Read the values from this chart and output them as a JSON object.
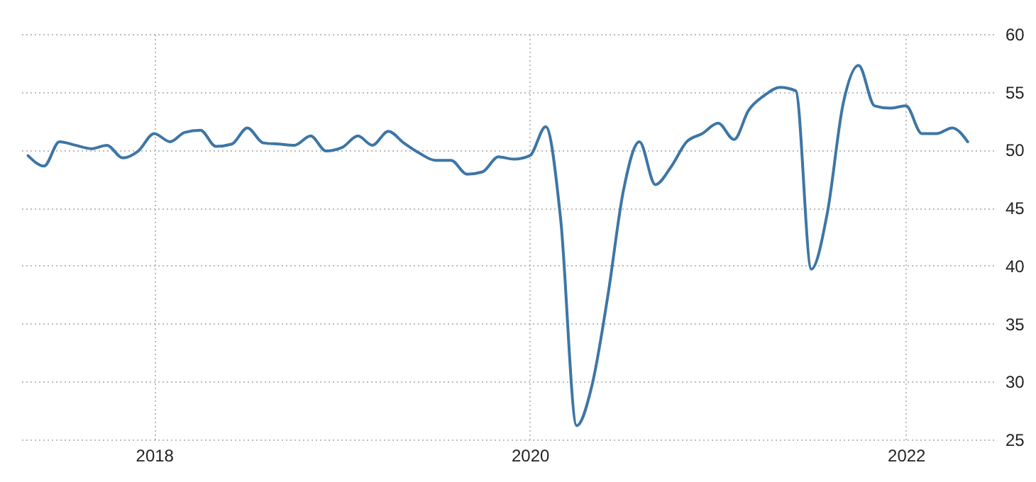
{
  "chart_data": {
    "type": "line",
    "x": [
      "2017-05",
      "2017-06",
      "2017-07",
      "2017-08",
      "2017-09",
      "2017-10",
      "2017-11",
      "2017-12",
      "2018-01",
      "2018-02",
      "2018-03",
      "2018-04",
      "2018-05",
      "2018-06",
      "2018-07",
      "2018-08",
      "2018-09",
      "2018-10",
      "2018-11",
      "2018-12",
      "2019-01",
      "2019-02",
      "2019-03",
      "2019-04",
      "2019-05",
      "2019-06",
      "2019-07",
      "2019-08",
      "2019-09",
      "2019-10",
      "2019-11",
      "2019-12",
      "2020-01",
      "2020-02",
      "2020-03",
      "2020-04",
      "2020-05",
      "2020-06",
      "2020-07",
      "2020-08",
      "2020-09",
      "2020-10",
      "2020-11",
      "2020-12",
      "2021-01",
      "2021-02",
      "2021-03",
      "2021-04",
      "2021-05",
      "2021-06",
      "2021-07",
      "2021-08",
      "2021-09",
      "2021-10",
      "2021-11",
      "2021-12",
      "2022-01",
      "2022-02",
      "2022-03",
      "2022-04",
      "2022-05"
    ],
    "series": [
      {
        "color": "#3d76a6",
        "values": [
          49.5,
          48.6,
          50.7,
          50.4,
          50.1,
          50.4,
          49.3,
          49.9,
          51.4,
          50.7,
          51.5,
          51.7,
          50.3,
          50.5,
          51.9,
          50.6,
          50.5,
          50.4,
          51.2,
          49.9,
          50.2,
          51.2,
          50.4,
          51.6,
          50.6,
          49.7,
          49.1,
          49.1,
          47.9,
          48.1,
          49.4,
          49.2,
          49.5,
          52.0,
          44.0,
          26.2,
          29.7,
          37.5,
          46.5,
          50.7,
          47.0,
          48.5,
          50.7,
          51.4,
          52.3,
          50.9,
          53.4,
          54.7,
          55.4,
          55.1,
          39.7,
          44.5,
          54.0,
          57.3,
          53.8,
          53.6,
          53.8,
          51.4,
          51.4,
          51.9,
          50.7
        ]
      }
    ],
    "xlim": [
      "2017-04-15",
      "2022-06-20"
    ],
    "xticks": [
      "2018",
      "2020",
      "2022"
    ],
    "ylim": [
      25,
      60
    ],
    "yticks": [
      25,
      30,
      35,
      40,
      45,
      50,
      55,
      60
    ],
    "grid": true,
    "marker": "none",
    "line_style": "solid"
  }
}
